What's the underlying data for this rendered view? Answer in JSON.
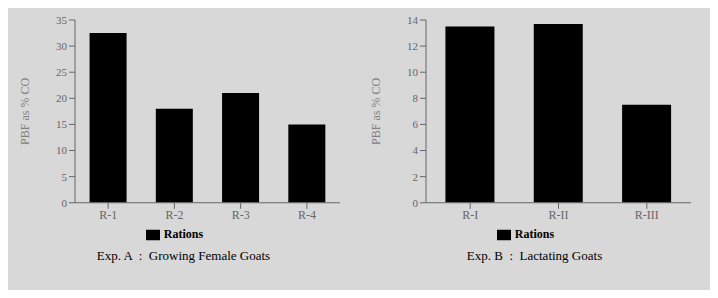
{
  "chart_data": [
    {
      "type": "bar",
      "categories": [
        "R-1",
        "R-2",
        "R-3",
        "R-4"
      ],
      "series": [
        {
          "name": "Rations",
          "color": "#000000",
          "values": [
            32.5,
            18.0,
            21.0,
            15.0
          ]
        }
      ],
      "y_label": "PBF as % CO",
      "ylim": [
        0,
        35
      ],
      "yticks": [
        0,
        5,
        10,
        15,
        20,
        25,
        30,
        35
      ],
      "legend": "bottom",
      "annotations": [
        "Exp. A  :  Growing Female Goats"
      ]
    },
    {
      "type": "bar",
      "categories": [
        "R-I",
        "R-II",
        "R-III"
      ],
      "series": [
        {
          "name": "Rations",
          "color": "#000000",
          "values": [
            13.5,
            13.7,
            7.5
          ]
        }
      ],
      "y_label": "PBF as % CO",
      "ylim": [
        0,
        14
      ],
      "yticks": [
        0,
        2,
        4,
        6,
        8,
        10,
        12,
        14
      ],
      "legend": "bottom",
      "annotations": [
        "Exp. B  :  Lactating Goats"
      ]
    }
  ]
}
